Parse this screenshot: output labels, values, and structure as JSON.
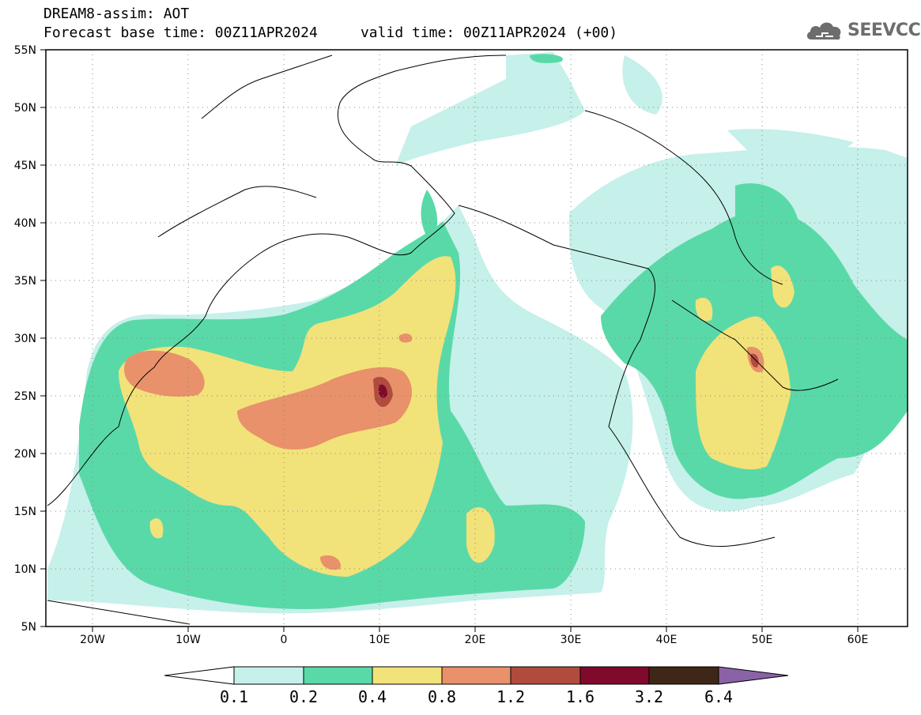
{
  "header": {
    "title_line1": "DREAM8-assim: AOT",
    "title_line2": "Forecast base time: 00Z11APR2024     valid time: 00Z11APR2024 (+00)"
  },
  "logo": {
    "icon": "cloud-icon",
    "text": "SEEVCCC"
  },
  "map": {
    "lon_range": [
      -25,
      65
    ],
    "lat_range": [
      5,
      55
    ],
    "gridlines": "dotted",
    "lat_ticks": [
      "5N",
      "10N",
      "15N",
      "20N",
      "25N",
      "30N",
      "35N",
      "40N",
      "45N",
      "50N",
      "55N"
    ],
    "lon_ticks": [
      "20W",
      "10W",
      "0",
      "10E",
      "20E",
      "30E",
      "40E",
      "50E",
      "60E"
    ]
  },
  "colorbar": {
    "labels": [
      "0.1",
      "0.2",
      "0.4",
      "0.8",
      "1.2",
      "1.6",
      "3.2",
      "6.4"
    ],
    "colors": [
      "#c6f0ea",
      "#5ad9a8",
      "#f2e27a",
      "#e8916a",
      "#b04b3e",
      "#7f0a2c",
      "#3e2716",
      "#8a63a6"
    ]
  }
}
